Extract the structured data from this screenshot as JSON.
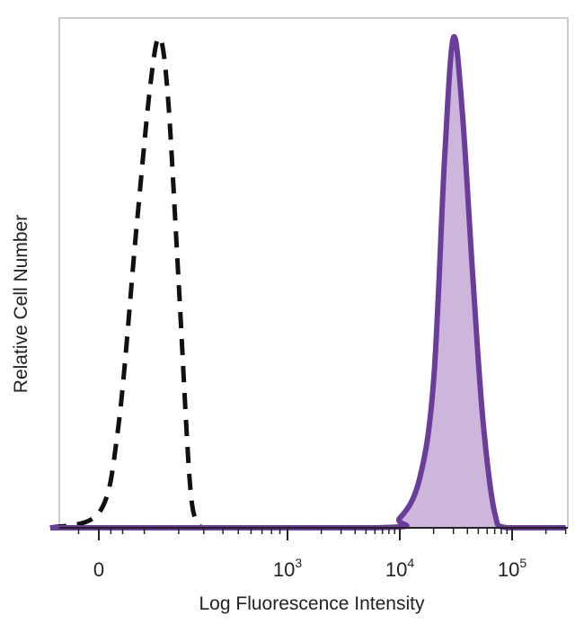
{
  "chart_data": {
    "type": "area",
    "title": "",
    "xlabel": "Log Fluorescence Intensity",
    "ylabel": "Relative Cell Number",
    "x_scale": "biexponential",
    "grid": false,
    "legend": "none",
    "xticks": [
      {
        "value": 0,
        "base": "0",
        "exp": ""
      },
      {
        "value": 1000,
        "base": "10",
        "exp": "3"
      },
      {
        "value": 10000,
        "base": "10",
        "exp": "4"
      },
      {
        "value": 100000,
        "base": "10",
        "exp": "5"
      }
    ],
    "y_range": [
      0,
      1
    ],
    "series": [
      {
        "style": "dashed",
        "color": "#111111",
        "fill": "none",
        "points": [
          {
            "x": -60,
            "y": 0.0
          },
          {
            "x": 0,
            "y": 0.03
          },
          {
            "x": 40,
            "y": 0.2
          },
          {
            "x": 80,
            "y": 0.6
          },
          {
            "x": 115,
            "y": 0.9
          },
          {
            "x": 140,
            "y": 1.0
          },
          {
            "x": 165,
            "y": 0.88
          },
          {
            "x": 200,
            "y": 0.5
          },
          {
            "x": 240,
            "y": 0.1
          },
          {
            "x": 270,
            "y": 0.01
          },
          {
            "x": 300,
            "y": 0.0
          }
        ]
      },
      {
        "style": "solid",
        "color": "#6a3d9a",
        "fill": "#cdb6dc",
        "points": [
          {
            "x": -60,
            "y": 0.0
          },
          {
            "x": 6000,
            "y": 0.0
          },
          {
            "x": 10000,
            "y": 0.02
          },
          {
            "x": 15000,
            "y": 0.1
          },
          {
            "x": 20000,
            "y": 0.3
          },
          {
            "x": 25000,
            "y": 0.75
          },
          {
            "x": 30000,
            "y": 1.0
          },
          {
            "x": 36000,
            "y": 0.85
          },
          {
            "x": 45000,
            "y": 0.5
          },
          {
            "x": 55000,
            "y": 0.22
          },
          {
            "x": 70000,
            "y": 0.03
          },
          {
            "x": 90000,
            "y": 0.0
          },
          {
            "x": 300000,
            "y": 0.0
          }
        ]
      }
    ],
    "colors": {
      "isotype": "#111111",
      "stain_line": "#6a3d9a",
      "stain_fill": "#cdb6dc",
      "frame": "#bbbbbb"
    }
  }
}
